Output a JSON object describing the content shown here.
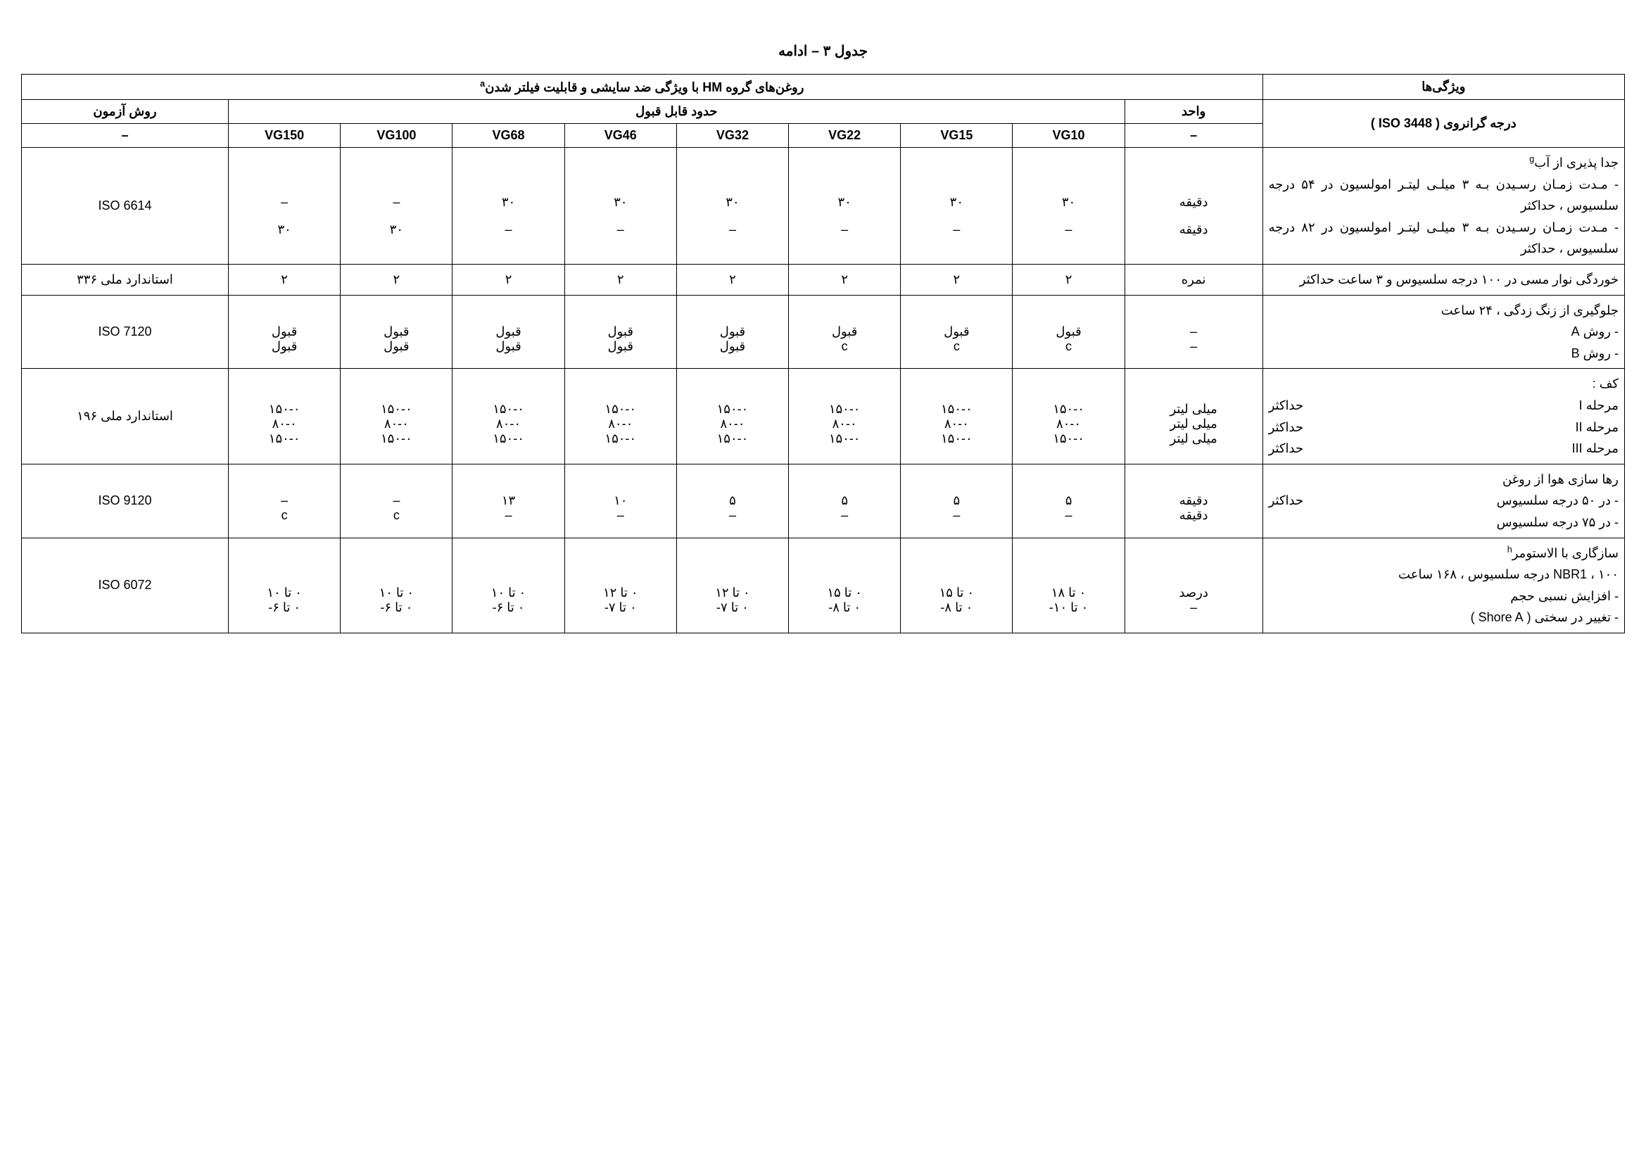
{
  "title": "جدول ۳ – ادامه",
  "header": {
    "properties": "ویژگی‌ها",
    "group_title_pre": "روغن‌های گروه HM با ویژگی ضد سایشی و قابلیت فیلتر شدن",
    "group_title_sup": "a",
    "viscosity_grade": "درجه گرانروی ( ISO 3448 )",
    "unit": "واحد",
    "accept_limits": "حدود قابل قبول",
    "test_method": "روش آزمون",
    "unit_dash": "–",
    "method_dash": "–",
    "vg": [
      "VG10",
      "VG15",
      "VG22",
      "VG32",
      "VG46",
      "VG68",
      "VG100",
      "VG150"
    ]
  },
  "rows": {
    "r1": {
      "prop_main": "جدا پذیری از آب",
      "prop_main_sup": "g",
      "prop_a": "- مـدت زمـان رسـیدن بـه ۳ میلـی لیتـر امولسیون در ۵۴ درجه سلسیوس ،  حداکثر",
      "prop_b": "- مـدت زمـان رسـیدن بـه ۳ میلـی لیتـر امولسیون در ۸۲ درجه سلسیوس ،  حداکثر",
      "unit_a": "دقیقه",
      "unit_b": "دقیقه",
      "a": [
        "۳۰",
        "۳۰",
        "۳۰",
        "۳۰",
        "۳۰",
        "۳۰",
        "–",
        "–"
      ],
      "b": [
        "–",
        "–",
        "–",
        "–",
        "–",
        "–",
        "۳۰",
        "۳۰"
      ],
      "method": "ISO 6614"
    },
    "r2": {
      "prop": "خوردگی نوار مسی در ۱۰۰ درجه سلسیوس و ۳ ساعت                         حداکثر",
      "unit": "نمره",
      "v": [
        "۲",
        "۲",
        "۲",
        "۲",
        "۲",
        "۲",
        "۲",
        "۲"
      ],
      "method": "استاندارد ملی ۳۳۶"
    },
    "r3": {
      "prop_main": "جلوگیری از زنگ زدگی ، ۲۴ ساعت",
      "prop_a": "- روش A",
      "prop_b": "- روش B",
      "unit_a": "–",
      "unit_b": "–",
      "a": [
        "قبول",
        "قبول",
        "قبول",
        "قبول",
        "قبول",
        "قبول",
        "قبول",
        "قبول"
      ],
      "b": [
        "c",
        "c",
        "c",
        "قبول",
        "قبول",
        "قبول",
        "قبول",
        "قبول"
      ],
      "method": "ISO 7120"
    },
    "r4": {
      "prop_main": "کف :",
      "s1_l": "مرحله I",
      "s1_r": "حداکثر",
      "s2_l": "مرحله II",
      "s2_r": "حداکثر",
      "s3_l": "مرحله III",
      "s3_r": "حداکثر",
      "unit": "میلی لیتر",
      "v1": [
        "۱۵۰-۰",
        "۱۵۰-۰",
        "۱۵۰-۰",
        "۱۵۰-۰",
        "۱۵۰-۰",
        "۱۵۰-۰",
        "۱۵۰-۰",
        "۱۵۰-۰"
      ],
      "v2": [
        "۸۰-۰",
        "۸۰-۰",
        "۸۰-۰",
        "۸۰-۰",
        "۸۰-۰",
        "۸۰-۰",
        "۸۰-۰",
        "۸۰-۰"
      ],
      "v3": [
        "۱۵۰-۰",
        "۱۵۰-۰",
        "۱۵۰-۰",
        "۱۵۰-۰",
        "۱۵۰-۰",
        "۱۵۰-۰",
        "۱۵۰-۰",
        "۱۵۰-۰"
      ],
      "method": "استاندارد ملی ۱۹۶"
    },
    "r5": {
      "prop_main": "رها سازی هوا از روغن",
      "s1_l": "- در ۵۰ درجه سلسیوس",
      "s1_r": "حداکثر",
      "s2": "- در ۷۵ درجه سلسیوس",
      "unit_a": "دقیقه",
      "unit_b": "دقیقه",
      "a": [
        "۵",
        "۵",
        "۵",
        "۵",
        "۱۰",
        "۱۳",
        "–",
        "–"
      ],
      "b": [
        "–",
        "–",
        "–",
        "–",
        "–",
        "–",
        "c",
        "c"
      ],
      "method": "ISO 9120"
    },
    "r6": {
      "prop_main": "سازگاری با الاستومر",
      "prop_main_sup": "h",
      "prop_sub": "NBR1 ، ۱۰۰ درجه سلسیوس ، ۱۶۸ ساعت",
      "s1": "- افزایش نسبی حجم",
      "s2": "- تغییر در سختی ( Shore A )",
      "unit_a": "درصد",
      "unit_b": "–",
      "a": [
        "۰ تا ۱۸",
        "۰ تا ۱۵",
        "۰ تا ۱۵",
        "۰ تا ۱۲",
        "۰ تا ۱۲",
        "۰ تا ۱۰",
        "۰ تا ۱۰",
        "۰ تا ۱۰"
      ],
      "b": [
        "۰ تا ۱۰-",
        "۰ تا ۸-",
        "۰ تا ۸-",
        "۰ تا ۷-",
        "۰ تا ۷-",
        "۰ تا ۶-",
        "۰ تا ۶-",
        "۰ تا ۶-"
      ],
      "method": "ISO 6072"
    }
  },
  "style": {
    "background": "#ffffff",
    "border_color": "#000000",
    "text_color": "#000000",
    "title_fontsize": 20,
    "cell_fontsize": 18
  }
}
